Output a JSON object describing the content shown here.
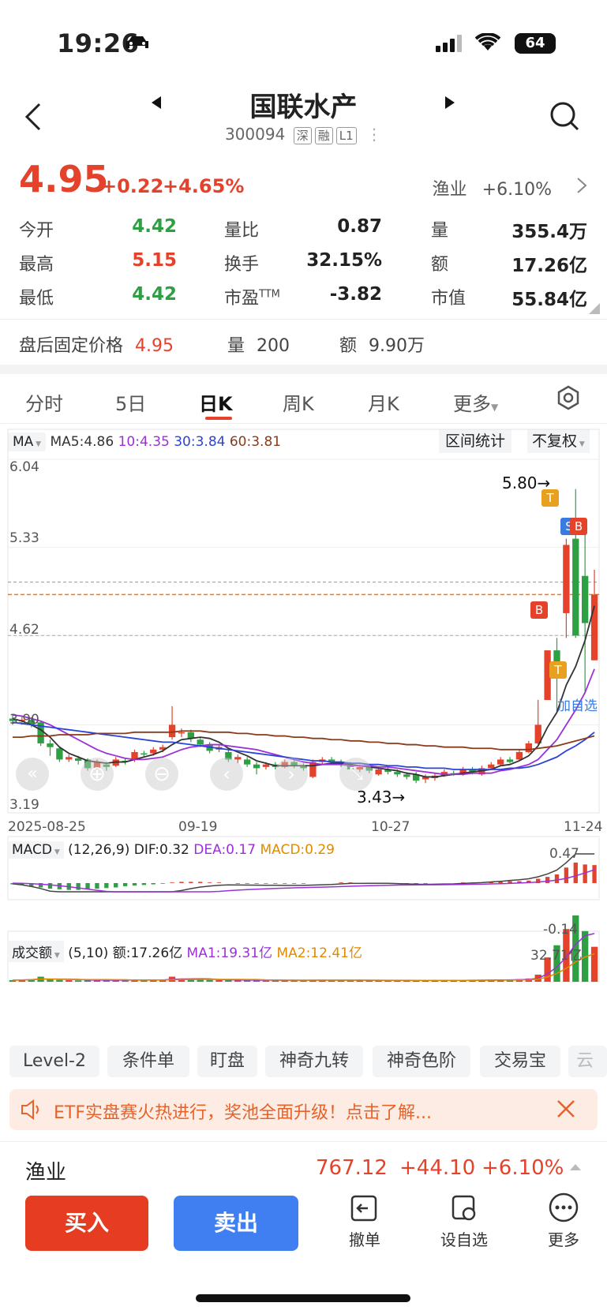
{
  "status": {
    "time": "19:26",
    "battery": "64"
  },
  "header": {
    "title": "国联水产",
    "code": "300094",
    "tags": [
      "深",
      "融",
      "L1"
    ]
  },
  "quote": {
    "price": "4.95",
    "change": "+0.22",
    "change_pct": "+4.65%",
    "sector_name": "渔业",
    "sector_pct": "+6.10%",
    "rows": [
      {
        "l1": "今开",
        "v1": "4.42",
        "l2": "量比",
        "v2": "0.87",
        "l3": "量",
        "v3": "355.4万"
      },
      {
        "l1": "最高",
        "v1": "5.15",
        "l2": "换手",
        "v2": "32.15%",
        "l3": "额",
        "v3": "17.26亿"
      },
      {
        "l1": "最低",
        "v1": "4.42",
        "l2": "市盈",
        "l2sup": "TTM",
        "v2": "-3.82",
        "l3": "市值",
        "v3": "55.84亿"
      }
    ],
    "after": {
      "label": "盘后固定价格",
      "price": "4.95",
      "vol_label": "量",
      "vol": "200",
      "amt_label": "额",
      "amt": "9.90万"
    }
  },
  "tabs": [
    "分时",
    "5日",
    "日K",
    "周K",
    "月K",
    "更多"
  ],
  "chart": {
    "ma_label": "MA",
    "ma5": "MA5:4.86",
    "ma10": "10:4.35",
    "ma30": "30:3.84",
    "ma60": "60:3.81",
    "btn_range": "区间统计",
    "btn_adj": "不复权",
    "yticks": [
      "6.04",
      "5.33",
      "4.62",
      "3.90",
      "3.19"
    ],
    "dates": [
      "2025-08-25",
      "09-19",
      "10-27",
      "11-24"
    ],
    "high_label": "5.80→",
    "low_label": "3.43→",
    "add_watch": "加自选",
    "macd_label": "MACD",
    "macd_params": "(12,26,9)",
    "dif": "DIF:0.32",
    "dea": "DEA:0.17",
    "macd_val": "MACD:0.29",
    "macd_max": "0.47",
    "macd_min": "-0.14",
    "vol_label": "成交额",
    "vol_params": "(5,10)",
    "vol_amt": "额:17.26亿",
    "vol_ma1": "MA1:19.31亿",
    "vol_ma2": "MA2:12.41亿",
    "vol_max": "32.71亿",
    "marker_T": "T",
    "marker_B": "B",
    "marker_S": "S"
  },
  "chips": [
    "Level-2",
    "条件单",
    "盯盘",
    "神奇九转",
    "神奇色阶",
    "交易宝",
    "云"
  ],
  "banner": {
    "text": "ETF实盘赛火热进行，奖池全面升级！点击了解..."
  },
  "sector_bar": {
    "name": "渔业",
    "price": "767.12",
    "change": "+44.10",
    "pct": "+6.10%"
  },
  "bottom": {
    "buy": "买入",
    "sell": "卖出",
    "cancel": "撤单",
    "watch": "设自选",
    "more": "更多"
  },
  "chart_data": {
    "type": "candlestick",
    "ylim": [
      3.19,
      6.04
    ],
    "candles": [
      {
        "o": 3.95,
        "c": 3.93,
        "h": 3.98,
        "l": 3.9
      },
      {
        "o": 3.93,
        "c": 3.94,
        "h": 3.97,
        "l": 3.9
      },
      {
        "o": 3.94,
        "c": 3.9,
        "h": 3.96,
        "l": 3.88
      },
      {
        "o": 3.92,
        "c": 3.75,
        "h": 3.93,
        "l": 3.73
      },
      {
        "o": 3.75,
        "c": 3.72,
        "h": 3.78,
        "l": 3.65
      },
      {
        "o": 3.71,
        "c": 3.62,
        "h": 3.72,
        "l": 3.6
      },
      {
        "o": 3.62,
        "c": 3.64,
        "h": 3.66,
        "l": 3.6
      },
      {
        "o": 3.63,
        "c": 3.61,
        "h": 3.65,
        "l": 3.58
      },
      {
        "o": 3.62,
        "c": 3.55,
        "h": 3.63,
        "l": 3.53
      },
      {
        "o": 3.55,
        "c": 3.6,
        "h": 3.62,
        "l": 3.54
      },
      {
        "o": 3.58,
        "c": 3.56,
        "h": 3.6,
        "l": 3.53
      },
      {
        "o": 3.57,
        "c": 3.62,
        "h": 3.64,
        "l": 3.56
      },
      {
        "o": 3.61,
        "c": 3.6,
        "h": 3.63,
        "l": 3.58
      },
      {
        "o": 3.62,
        "c": 3.68,
        "h": 3.7,
        "l": 3.6
      },
      {
        "o": 3.67,
        "c": 3.66,
        "h": 3.69,
        "l": 3.64
      },
      {
        "o": 3.67,
        "c": 3.7,
        "h": 3.72,
        "l": 3.65
      },
      {
        "o": 3.7,
        "c": 3.72,
        "h": 3.74,
        "l": 3.68
      },
      {
        "o": 3.8,
        "c": 3.9,
        "h": 4.05,
        "l": 3.78
      },
      {
        "o": 3.84,
        "c": 3.84,
        "h": 3.87,
        "l": 3.8
      },
      {
        "o": 3.84,
        "c": 3.79,
        "h": 3.86,
        "l": 3.76
      },
      {
        "o": 3.78,
        "c": 3.74,
        "h": 3.8,
        "l": 3.72
      },
      {
        "o": 3.74,
        "c": 3.69,
        "h": 3.76,
        "l": 3.67
      },
      {
        "o": 3.7,
        "c": 3.72,
        "h": 3.74,
        "l": 3.68
      },
      {
        "o": 3.68,
        "c": 3.62,
        "h": 3.7,
        "l": 3.6
      },
      {
        "o": 3.62,
        "c": 3.64,
        "h": 3.66,
        "l": 3.59
      },
      {
        "o": 3.62,
        "c": 3.58,
        "h": 3.64,
        "l": 3.56
      },
      {
        "o": 3.58,
        "c": 3.55,
        "h": 3.6,
        "l": 3.5
      },
      {
        "o": 3.56,
        "c": 3.58,
        "h": 3.6,
        "l": 3.54
      },
      {
        "o": 3.58,
        "c": 3.56,
        "h": 3.6,
        "l": 3.54
      },
      {
        "o": 3.56,
        "c": 3.6,
        "h": 3.62,
        "l": 3.55
      },
      {
        "o": 3.6,
        "c": 3.57,
        "h": 3.62,
        "l": 3.55
      },
      {
        "o": 3.57,
        "c": 3.55,
        "h": 3.59,
        "l": 3.53
      },
      {
        "o": 3.48,
        "c": 3.6,
        "h": 3.62,
        "l": 3.47
      },
      {
        "o": 3.6,
        "c": 3.62,
        "h": 3.64,
        "l": 3.58
      },
      {
        "o": 3.62,
        "c": 3.6,
        "h": 3.64,
        "l": 3.58
      },
      {
        "o": 3.6,
        "c": 3.58,
        "h": 3.62,
        "l": 3.56
      },
      {
        "o": 3.58,
        "c": 3.54,
        "h": 3.6,
        "l": 3.52
      },
      {
        "o": 3.54,
        "c": 3.56,
        "h": 3.58,
        "l": 3.52
      },
      {
        "o": 3.56,
        "c": 3.53,
        "h": 3.58,
        "l": 3.51
      },
      {
        "o": 3.5,
        "c": 3.54,
        "h": 3.56,
        "l": 3.49
      },
      {
        "o": 3.54,
        "c": 3.52,
        "h": 3.56,
        "l": 3.5
      },
      {
        "o": 3.52,
        "c": 3.5,
        "h": 3.54,
        "l": 3.48
      },
      {
        "o": 3.5,
        "c": 3.48,
        "h": 3.52,
        "l": 3.46
      },
      {
        "o": 3.5,
        "c": 3.45,
        "h": 3.52,
        "l": 3.43
      },
      {
        "o": 3.46,
        "c": 3.48,
        "h": 3.5,
        "l": 3.43
      },
      {
        "o": 3.47,
        "c": 3.49,
        "h": 3.51,
        "l": 3.45
      },
      {
        "o": 3.49,
        "c": 3.52,
        "h": 3.54,
        "l": 3.48
      },
      {
        "o": 3.51,
        "c": 3.5,
        "h": 3.53,
        "l": 3.49
      },
      {
        "o": 3.5,
        "c": 3.54,
        "h": 3.56,
        "l": 3.49
      },
      {
        "o": 3.54,
        "c": 3.52,
        "h": 3.56,
        "l": 3.5
      },
      {
        "o": 3.5,
        "c": 3.55,
        "h": 3.57,
        "l": 3.49
      },
      {
        "o": 3.55,
        "c": 3.58,
        "h": 3.6,
        "l": 3.54
      },
      {
        "o": 3.58,
        "c": 3.62,
        "h": 3.64,
        "l": 3.57
      },
      {
        "o": 3.62,
        "c": 3.6,
        "h": 3.64,
        "l": 3.59
      },
      {
        "o": 3.62,
        "c": 3.68,
        "h": 3.7,
        "l": 3.61
      },
      {
        "o": 3.68,
        "c": 3.75,
        "h": 3.77,
        "l": 3.67
      },
      {
        "o": 3.75,
        "c": 3.9,
        "h": 4.1,
        "l": 3.74
      },
      {
        "o": 4.1,
        "c": 4.5,
        "h": 4.5,
        "l": 4.1
      },
      {
        "o": 4.5,
        "c": 4.35,
        "h": 4.6,
        "l": 4.0
      },
      {
        "o": 4.8,
        "c": 5.35,
        "h": 5.4,
        "l": 4.6
      },
      {
        "o": 5.4,
        "c": 4.62,
        "h": 5.8,
        "l": 4.6
      },
      {
        "o": 5.1,
        "c": 4.72,
        "h": 5.55,
        "l": 4.15
      },
      {
        "o": 4.42,
        "c": 4.95,
        "h": 5.15,
        "l": 4.42
      }
    ],
    "series": [
      {
        "name": "MA5",
        "values": [
          3.95,
          3.93,
          3.9,
          3.86,
          3.8,
          3.72,
          3.67,
          3.64,
          3.61,
          3.6,
          3.59,
          3.6,
          3.6,
          3.62,
          3.64,
          3.66,
          3.69,
          3.74,
          3.78,
          3.79,
          3.8,
          3.79,
          3.76,
          3.71,
          3.68,
          3.65,
          3.61,
          3.59,
          3.57,
          3.57,
          3.57,
          3.57,
          3.57,
          3.58,
          3.59,
          3.59,
          3.58,
          3.57,
          3.56,
          3.55,
          3.54,
          3.53,
          3.51,
          3.5,
          3.48,
          3.48,
          3.49,
          3.5,
          3.51,
          3.52,
          3.53,
          3.54,
          3.57,
          3.58,
          3.61,
          3.65,
          3.73,
          3.88,
          4.0,
          4.22,
          4.37,
          4.58,
          4.86
        ]
      },
      {
        "name": "MA10",
        "values": [
          3.98,
          3.97,
          3.95,
          3.93,
          3.9,
          3.86,
          3.82,
          3.78,
          3.74,
          3.7,
          3.67,
          3.65,
          3.63,
          3.62,
          3.62,
          3.63,
          3.64,
          3.67,
          3.7,
          3.72,
          3.73,
          3.74,
          3.74,
          3.73,
          3.72,
          3.71,
          3.7,
          3.68,
          3.66,
          3.64,
          3.62,
          3.6,
          3.59,
          3.58,
          3.58,
          3.58,
          3.57,
          3.57,
          3.57,
          3.56,
          3.56,
          3.55,
          3.54,
          3.53,
          3.52,
          3.51,
          3.5,
          3.5,
          3.5,
          3.51,
          3.51,
          3.51,
          3.53,
          3.54,
          3.56,
          3.58,
          3.62,
          3.7,
          3.78,
          3.9,
          4.02,
          4.16,
          4.35
        ]
      },
      {
        "name": "MA30",
        "values": [
          3.92,
          3.91,
          3.9,
          3.89,
          3.88,
          3.87,
          3.86,
          3.85,
          3.84,
          3.83,
          3.82,
          3.81,
          3.8,
          3.79,
          3.78,
          3.77,
          3.76,
          3.76,
          3.75,
          3.74,
          3.73,
          3.72,
          3.71,
          3.7,
          3.69,
          3.68,
          3.67,
          3.66,
          3.65,
          3.64,
          3.63,
          3.62,
          3.61,
          3.61,
          3.6,
          3.6,
          3.59,
          3.59,
          3.58,
          3.58,
          3.57,
          3.57,
          3.56,
          3.56,
          3.55,
          3.55,
          3.55,
          3.54,
          3.54,
          3.54,
          3.54,
          3.54,
          3.54,
          3.55,
          3.55,
          3.56,
          3.58,
          3.61,
          3.64,
          3.69,
          3.73,
          3.78,
          3.84
        ]
      },
      {
        "name": "MA60",
        "values": [
          3.8,
          3.8,
          3.81,
          3.81,
          3.81,
          3.82,
          3.82,
          3.82,
          3.82,
          3.83,
          3.83,
          3.83,
          3.83,
          3.84,
          3.84,
          3.84,
          3.84,
          3.84,
          3.85,
          3.85,
          3.85,
          3.84,
          3.84,
          3.84,
          3.83,
          3.83,
          3.82,
          3.82,
          3.81,
          3.81,
          3.8,
          3.8,
          3.79,
          3.79,
          3.78,
          3.78,
          3.77,
          3.77,
          3.76,
          3.76,
          3.75,
          3.75,
          3.74,
          3.74,
          3.73,
          3.73,
          3.72,
          3.72,
          3.72,
          3.71,
          3.71,
          3.71,
          3.7,
          3.7,
          3.7,
          3.7,
          3.71,
          3.72,
          3.73,
          3.75,
          3.77,
          3.79,
          3.81
        ]
      }
    ],
    "macd_hist": [
      -0.02,
      -0.03,
      -0.05,
      -0.07,
      -0.09,
      -0.1,
      -0.11,
      -0.11,
      -0.1,
      -0.09,
      -0.08,
      -0.07,
      -0.05,
      -0.04,
      -0.03,
      -0.02,
      -0.01,
      0.01,
      0.02,
      0.02,
      0.02,
      0.01,
      0.01,
      0.0,
      -0.01,
      -0.01,
      -0.01,
      -0.01,
      -0.01,
      -0.01,
      -0.01,
      -0.01,
      0.0,
      0.0,
      0.0,
      0.01,
      0.01,
      0.0,
      0.0,
      0.0,
      0.0,
      -0.01,
      -0.01,
      -0.01,
      -0.01,
      0.0,
      0.0,
      0.0,
      0.01,
      0.01,
      0.01,
      0.02,
      0.02,
      0.03,
      0.03,
      0.04,
      0.07,
      0.1,
      0.14,
      0.25,
      0.33,
      0.3,
      0.29
    ],
    "volumes": [
      0.8,
      1.0,
      1.2,
      2.5,
      1.0,
      0.9,
      0.8,
      0.7,
      0.9,
      0.8,
      0.7,
      0.9,
      0.8,
      1.0,
      0.8,
      0.9,
      1.0,
      2.5,
      1.5,
      1.2,
      1.0,
      0.9,
      0.8,
      0.9,
      0.8,
      0.7,
      0.8,
      0.7,
      0.8,
      0.7,
      0.8,
      0.7,
      0.9,
      0.8,
      0.7,
      0.8,
      0.7,
      0.8,
      0.7,
      0.6,
      0.7,
      0.6,
      0.7,
      0.6,
      0.7,
      0.6,
      0.7,
      0.8,
      0.7,
      0.8,
      0.9,
      0.9,
      1.0,
      1.1,
      1.3,
      1.6,
      3.5,
      12.0,
      18.0,
      26.0,
      32.71,
      25.0,
      17.26
    ]
  }
}
